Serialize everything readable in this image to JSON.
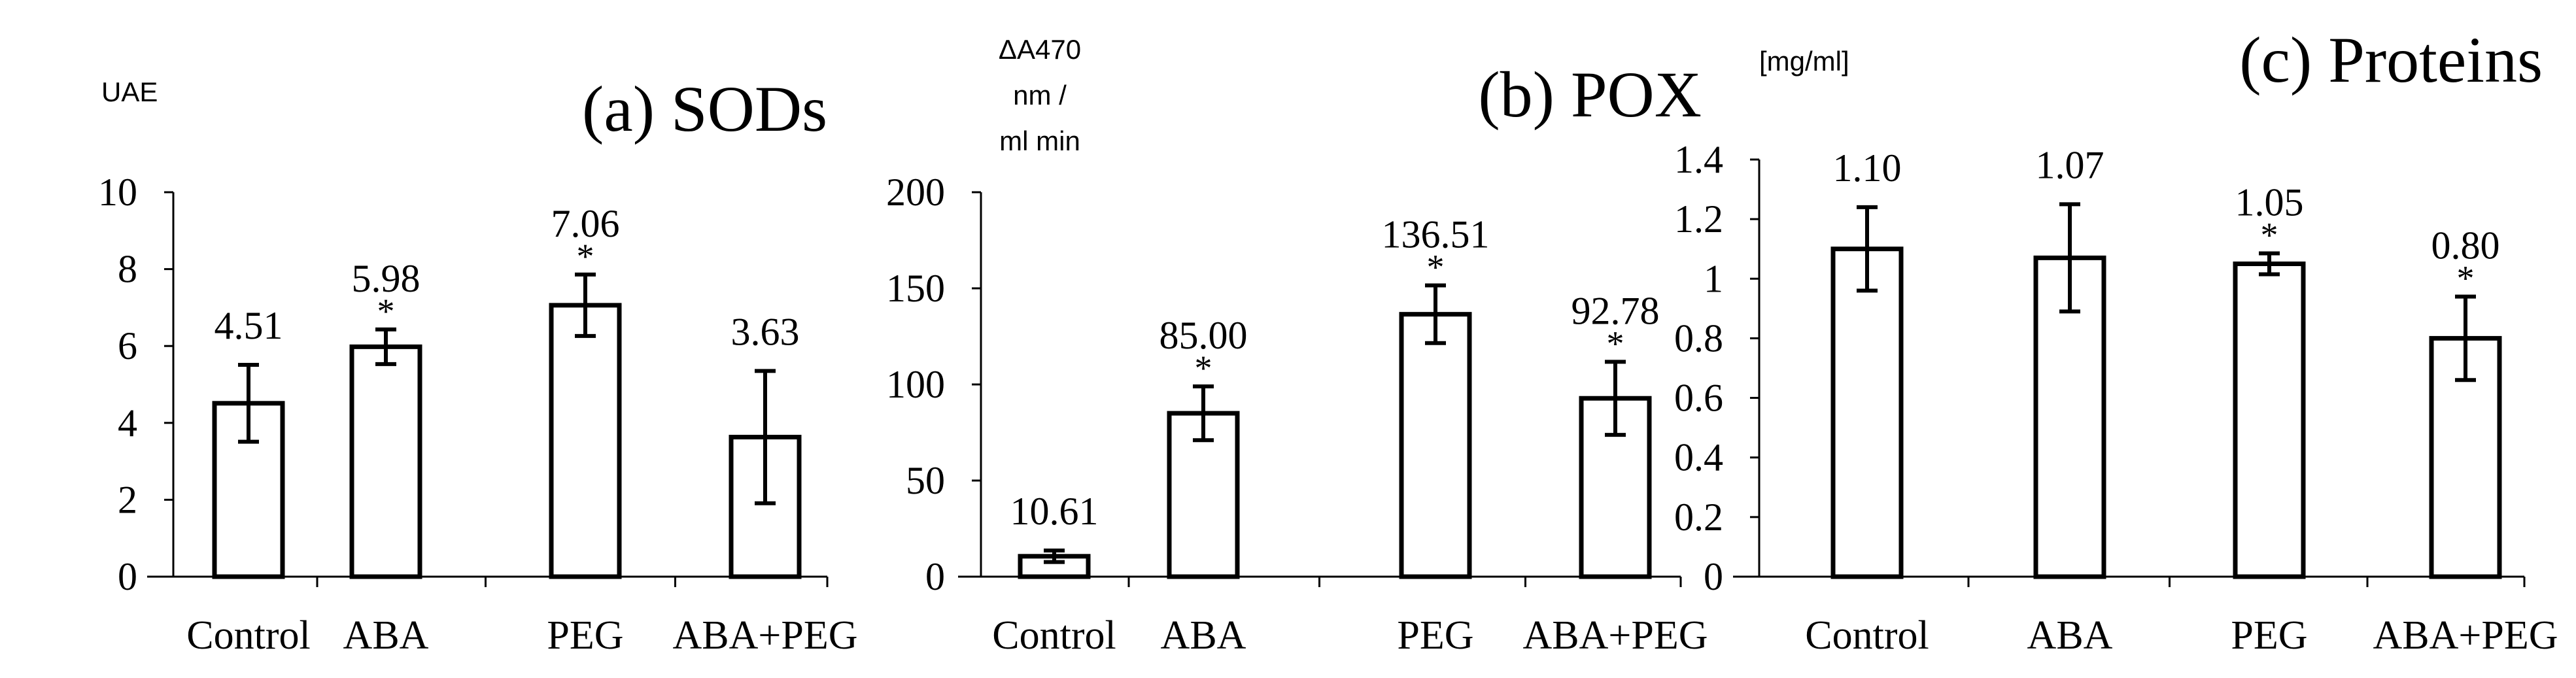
{
  "chart_data": [
    {
      "type": "bar",
      "title": "(a) SODs",
      "ylabel": [
        "UAE"
      ],
      "categories": [
        "Control",
        "ABA",
        "PEG",
        "ABA+PEG"
      ],
      "values": [
        4.51,
        5.98,
        7.06,
        3.63
      ],
      "errors": [
        1.0,
        0.45,
        0.8,
        1.72
      ],
      "value_labels": [
        "4.51",
        "5.98",
        "7.06",
        "3.63"
      ],
      "significant": [
        false,
        true,
        true,
        false
      ],
      "ylim": [
        0,
        10
      ],
      "yticks": [
        0,
        2,
        4,
        6,
        8,
        10
      ],
      "ytick_labels": [
        "0",
        "2",
        "4",
        "6",
        "8",
        "10"
      ],
      "grid": false
    },
    {
      "type": "bar",
      "title": "(b) POX",
      "ylabel": [
        "ΔA470",
        "nm /",
        "ml min"
      ],
      "categories": [
        "Control",
        "ABA",
        "PEG",
        "ABA+PEG"
      ],
      "values": [
        10.61,
        85.0,
        136.51,
        92.78
      ],
      "errors": [
        3,
        14,
        15,
        19
      ],
      "value_labels": [
        "10.61",
        "85.00",
        "136.51",
        "92.78"
      ],
      "significant": [
        false,
        true,
        true,
        true
      ],
      "ylim": [
        0,
        200
      ],
      "yticks": [
        0,
        50,
        100,
        150,
        200
      ],
      "ytick_labels": [
        "0",
        "50",
        "100",
        "150",
        "200"
      ],
      "grid": false
    },
    {
      "type": "bar",
      "title": "(c) Proteins",
      "ylabel": [
        "[mg/ml]"
      ],
      "categories": [
        "Control",
        "ABA",
        "PEG",
        "ABA+PEG"
      ],
      "values": [
        1.1,
        1.07,
        1.05,
        0.8
      ],
      "errors": [
        0.14,
        0.18,
        0.035,
        0.14
      ],
      "value_labels": [
        "1.10",
        "1.07",
        "1.05",
        "0.80"
      ],
      "significant": [
        false,
        false,
        true,
        true
      ],
      "ylim": [
        0,
        1.4
      ],
      "yticks": [
        0,
        0.2,
        0.4,
        0.6,
        0.8,
        1.0,
        1.2,
        1.4
      ],
      "ytick_labels": [
        "0",
        "0.2",
        "0.4",
        "0.6",
        "0.8",
        "1",
        "1.2",
        "1.4"
      ],
      "grid": false
    }
  ]
}
